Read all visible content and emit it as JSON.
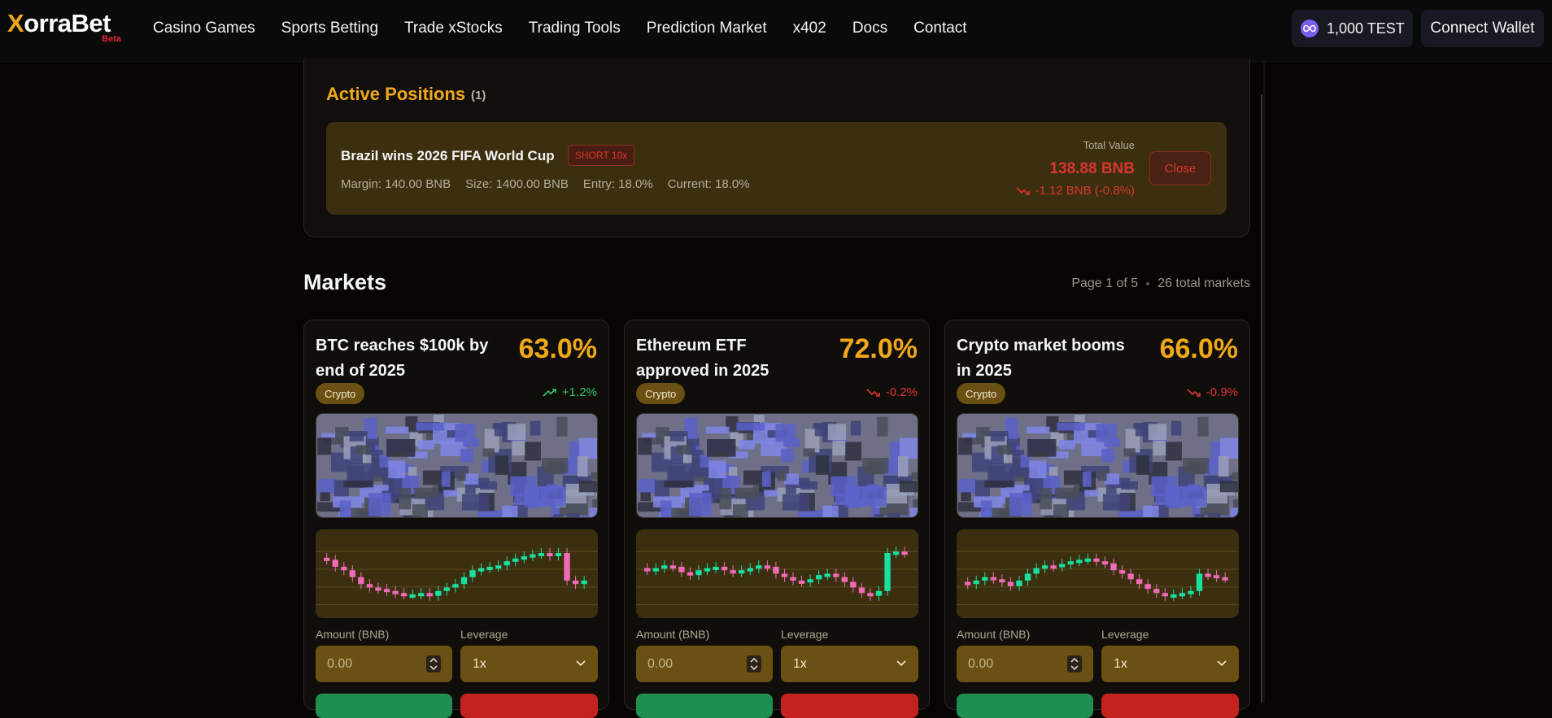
{
  "brand": {
    "name_x": "X",
    "name_rest": "orraBet",
    "beta": "Beta"
  },
  "nav": {
    "items": [
      "Casino Games",
      "Sports Betting",
      "Trade xStocks",
      "Trading Tools",
      "Prediction Market",
      "x402",
      "Docs",
      "Contact"
    ]
  },
  "account": {
    "balance": "1,000 TEST",
    "connect_label": "Connect Wallet"
  },
  "active_positions": {
    "title": "Active Positions",
    "count": "(1)",
    "position": {
      "name": "Brazil wins 2026 FIFA World Cup",
      "badge": "SHORT 10x",
      "margin": "Margin: 140.00 BNB",
      "size": "Size: 1400.00 BNB",
      "entry": "Entry: 18.0%",
      "current": "Current: 18.0%",
      "total_label": "Total Value",
      "total_value": "138.88 BNB",
      "change": "-1.12 BNB (-0.8%)",
      "close_label": "Close"
    }
  },
  "markets": {
    "title": "Markets",
    "page": "Page 1 of 5",
    "total": "26 total markets",
    "amount_label": "Amount (BNB)",
    "amount_placeholder": "0.00",
    "leverage_label": "Leverage",
    "leverage_value": "1x",
    "cards": [
      {
        "title": "BTC reaches $100k by end of 2025",
        "pct": "63.0%",
        "tag": "Crypto",
        "change": "+1.2%",
        "dir": "up"
      },
      {
        "title": "Ethereum ETF approved in 2025",
        "pct": "72.0%",
        "tag": "Crypto",
        "change": "-0.2%",
        "dir": "down"
      },
      {
        "title": "Crypto market booms in 2025",
        "pct": "66.0%",
        "tag": "Crypto",
        "change": "-0.9%",
        "dir": "down"
      }
    ]
  },
  "colors": {
    "accent": "#f0a81a",
    "up": "#2fc873",
    "down": "#e0322e",
    "candle_up": "#19e0a0",
    "candle_down": "#f06ab8"
  },
  "chart_series": [
    [
      0.7,
      0.6,
      0.55,
      0.45,
      0.35,
      0.3,
      0.28,
      0.25,
      0.22,
      0.2,
      0.2,
      0.22,
      0.18,
      0.25,
      0.3,
      0.35,
      0.45,
      0.55,
      0.58,
      0.6,
      0.62,
      0.68,
      0.72,
      0.75,
      0.78,
      0.8,
      0.76,
      0.8,
      0.4,
      0.35,
      0.4
    ],
    [
      0.55,
      0.58,
      0.62,
      0.6,
      0.52,
      0.48,
      0.55,
      0.58,
      0.6,
      0.55,
      0.52,
      0.55,
      0.58,
      0.62,
      0.6,
      0.5,
      0.45,
      0.4,
      0.38,
      0.42,
      0.48,
      0.5,
      0.45,
      0.38,
      0.3,
      0.22,
      0.18,
      0.25,
      0.8,
      0.82,
      0.8
    ],
    [
      0.35,
      0.4,
      0.45,
      0.42,
      0.38,
      0.32,
      0.4,
      0.5,
      0.58,
      0.62,
      0.6,
      0.64,
      0.68,
      0.7,
      0.72,
      0.68,
      0.65,
      0.55,
      0.5,
      0.42,
      0.35,
      0.28,
      0.22,
      0.18,
      0.2,
      0.22,
      0.25,
      0.5,
      0.48,
      0.45,
      0.44
    ]
  ]
}
